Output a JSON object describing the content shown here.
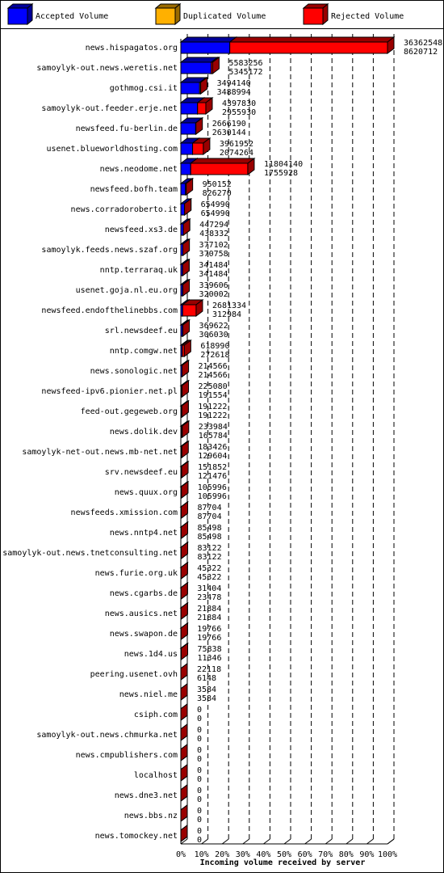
{
  "chart_data": {
    "type": "bar3d",
    "xlabel": "Incoming volume received by server",
    "categories": [
      "news.hispagatos.org",
      "samoylyk-out.news.weretis.net",
      "gothmog.csi.it",
      "samoylyk-out.feeder.erje.net",
      "newsfeed.fu-berlin.de",
      "usenet.blueworldhosting.com",
      "news.neodome.net",
      "newsfeed.bofh.team",
      "news.corradoroberto.it",
      "newsfeed.xs3.de",
      "samoylyk.feeds.news.szaf.org",
      "nntp.terraraq.uk",
      "usenet.goja.nl.eu.org",
      "newsfeed.endofthelinebbs.com",
      "srl.newsdeef.eu",
      "nntp.comgw.net",
      "news.sonologic.net",
      "newsfeed-ipv6.pionier.net.pl",
      "feed-out.gegeweb.org",
      "news.dolik.dev",
      "samoylyk-net-out.news.mb-net.net",
      "srv.newsdeef.eu",
      "news.quux.org",
      "newsfeeds.xmission.com",
      "news.nntp4.net",
      "samoylyk-out.news.tnetconsulting.net",
      "news.furie.org.uk",
      "news.cgarbs.de",
      "news.ausics.net",
      "news.swapon.de",
      "news.1d4.us",
      "peering.usenet.ovh",
      "news.niel.me",
      "csiph.com",
      "samoylyk-out.news.chmurka.net",
      "news.cmpublishers.com",
      "localhost",
      "news.dne3.net",
      "news.bbs.nz",
      "news.tomockey.net"
    ],
    "offered": [
      36362548,
      5583256,
      3494140,
      4397830,
      2666190,
      3961952,
      11804140,
      950152,
      654990,
      447294,
      377102,
      341484,
      339606,
      2681334,
      369622,
      618990,
      214566,
      225080,
      191222,
      233984,
      183426,
      151852,
      105996,
      87704,
      85498,
      83122,
      45322,
      31404,
      21884,
      19766,
      75838,
      22118,
      3584,
      0,
      0,
      0,
      0,
      0,
      0,
      0
    ],
    "accepted": [
      8620712,
      5345172,
      3488994,
      2955930,
      2630144,
      2074264,
      1755928,
      826270,
      654990,
      438332,
      370758,
      341484,
      320002,
      312984,
      306030,
      272618,
      214566,
      191554,
      191222,
      165784,
      129604,
      121476,
      105996,
      87704,
      85498,
      83122,
      45322,
      23478,
      21884,
      19766,
      11346,
      6148,
      3584,
      0,
      0,
      0,
      0,
      0,
      0,
      0
    ],
    "series": [
      {
        "name": "Accepted Volume",
        "color": "#0000ff",
        "values": [
          23.7,
          14.7,
          9.1,
          8.1,
          7.2,
          5.7,
          4.8,
          2.3,
          1.8,
          1.2,
          1.0,
          0.9,
          0.9,
          0.9,
          0.8,
          0.7,
          0.6,
          0.5,
          0.5,
          0.5,
          0.4,
          0.3,
          0.3,
          0.2,
          0.2,
          0.2,
          0.1,
          0.1,
          0.1,
          0.1,
          0.0,
          0.0,
          0,
          0,
          0,
          0,
          0,
          0,
          0,
          0
        ]
      },
      {
        "name": "Duplicated Volume",
        "color": "#ffb000",
        "values": [
          0,
          0,
          0.5,
          0,
          0,
          0,
          0,
          0,
          0,
          0,
          0,
          0,
          0,
          0,
          0,
          0,
          0,
          0,
          0,
          0,
          0,
          0,
          0,
          0,
          0,
          0,
          0,
          0,
          0,
          0,
          0,
          0,
          0,
          0,
          0,
          0,
          0,
          0,
          0,
          0
        ]
      },
      {
        "name": "Rejected Volume",
        "color": "#ff0000",
        "values": [
          76.3,
          0.7,
          0,
          4.0,
          0.1,
          5.2,
          27.6,
          0.3,
          0,
          0.0,
          0.0,
          0,
          0.1,
          6.5,
          0.2,
          1.0,
          0,
          0.1,
          0,
          0.2,
          0.1,
          0.1,
          0,
          0,
          0,
          0,
          0,
          0.0,
          0,
          0,
          0.2,
          0.0,
          0,
          0,
          0,
          0,
          0,
          0,
          0,
          0
        ]
      }
    ],
    "xlim": [
      0,
      100
    ],
    "xticks": [
      {
        "value": 0,
        "label": "0%"
      },
      {
        "value": 10,
        "label": "10%"
      },
      {
        "value": 20,
        "label": "20%"
      },
      {
        "value": 30,
        "label": "30%"
      },
      {
        "value": 40,
        "label": "40%"
      },
      {
        "value": 50,
        "label": "50%"
      },
      {
        "value": 60,
        "label": "60%"
      },
      {
        "value": 70,
        "label": "70%"
      },
      {
        "value": 80,
        "label": "80%"
      },
      {
        "value": 90,
        "label": "90%"
      },
      {
        "value": 100,
        "label": "100%"
      }
    ],
    "grid": true
  }
}
